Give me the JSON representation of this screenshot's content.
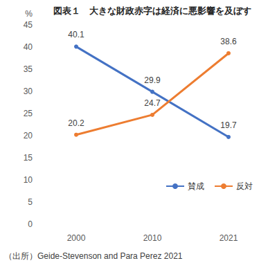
{
  "chart_data": {
    "type": "line",
    "title": "図表１　大きな財政赤字は経済に悪影響を及ぼす",
    "ylabel": "%",
    "source": "（出所）Geide-Stevenson and Para Perez 2021",
    "categories": [
      "2000",
      "2010",
      "2021"
    ],
    "series": [
      {
        "name": "賛成",
        "color": "#4472c4",
        "values": [
          40.1,
          29.9,
          19.7
        ]
      },
      {
        "name": "反対",
        "color": "#ed7d31",
        "values": [
          20.2,
          24.7,
          38.6
        ]
      }
    ],
    "ylim": [
      0,
      45
    ],
    "yticks": [
      0,
      5,
      10,
      15,
      20,
      25,
      30,
      35,
      40,
      45
    ],
    "grid": false,
    "legend": "lower right",
    "data_labels": true
  }
}
